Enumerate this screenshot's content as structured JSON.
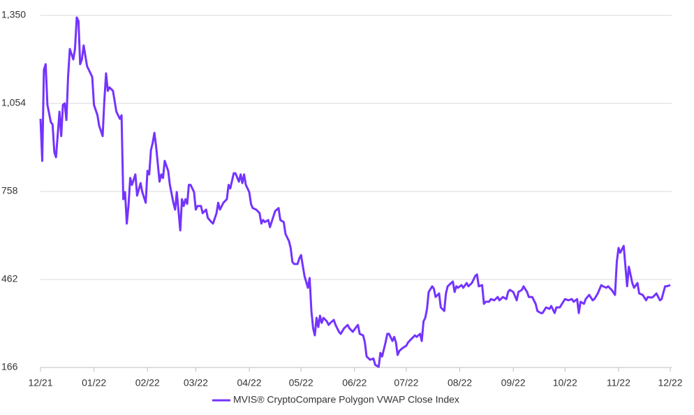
{
  "chart_data": {
    "type": "line",
    "x": [
      0,
      1,
      2,
      3,
      4,
      6,
      7,
      8,
      9,
      11,
      12,
      13,
      14,
      15,
      16,
      17,
      19,
      20,
      21,
      22,
      23,
      24,
      25,
      27,
      28,
      30,
      31,
      33,
      34,
      36,
      37,
      38,
      39,
      40,
      42,
      44,
      46,
      47,
      48,
      49,
      50,
      51,
      52,
      53,
      55,
      56,
      58,
      59,
      61,
      62,
      63,
      64,
      65,
      66,
      67,
      69,
      70,
      71,
      72,
      74,
      75,
      77,
      78,
      79,
      81,
      82,
      83,
      84,
      85,
      86,
      87,
      89,
      90,
      91,
      93,
      94,
      96,
      97,
      99,
      100,
      102,
      103,
      104,
      106,
      108,
      109,
      110,
      112,
      113,
      115,
      116,
      117,
      118,
      119,
      121,
      122,
      123,
      125,
      127,
      128,
      129,
      130,
      132,
      133,
      135,
      136,
      138,
      139,
      141,
      142,
      144,
      145,
      146,
      147,
      149,
      150,
      151,
      152,
      153,
      155,
      156,
      157,
      158,
      159,
      160,
      161,
      162,
      163,
      164,
      166,
      167,
      168,
      170,
      171,
      173,
      174,
      176,
      178,
      179,
      181,
      183,
      184,
      185,
      187,
      188,
      189,
      191,
      193,
      194,
      196,
      197,
      198,
      200,
      201,
      202,
      204,
      205,
      206,
      207,
      208,
      210,
      212,
      213,
      215,
      217,
      218,
      220,
      221,
      222,
      223,
      224,
      225,
      227,
      228,
      229,
      231,
      232,
      234,
      235,
      236,
      238,
      239,
      240,
      241,
      242,
      244,
      245,
      247,
      248,
      250,
      252,
      253,
      254,
      256,
      257,
      258,
      260,
      261,
      263,
      265,
      266,
      268,
      270,
      271,
      272,
      274,
      276,
      277,
      279,
      280,
      282,
      283,
      285,
      287,
      288,
      290,
      291,
      293,
      295,
      296,
      298,
      299,
      301,
      303,
      304,
      306,
      308,
      309,
      311,
      312,
      313,
      315,
      316,
      318,
      320,
      321,
      323,
      325,
      326,
      328,
      329,
      331,
      333,
      334,
      335,
      336,
      338,
      339,
      340,
      341,
      343,
      344,
      346,
      347,
      349,
      351,
      352,
      354,
      355,
      357,
      359,
      360,
      362,
      363,
      365
    ],
    "series": [
      {
        "name": "MVIS® CryptoCompare Polygon VWAP Close Index",
        "color": "#7433ff",
        "values": [
          1002,
          861,
          1167,
          1186,
          1049,
          991,
          983,
          890,
          873,
          1026,
          944,
          1049,
          1054,
          998,
          1143,
          1237,
          1202,
          1237,
          1343,
          1331,
          1186,
          1202,
          1249,
          1179,
          1167,
          1143,
          1049,
          1014,
          979,
          944,
          1061,
          1155,
          1096,
          1108,
          1096,
          1026,
          1002,
          1014,
          732,
          756,
          650,
          709,
          803,
          780,
          815,
          744,
          786,
          756,
          720,
          827,
          815,
          897,
          920,
          955,
          909,
          791,
          815,
          803,
          861,
          827,
          780,
          720,
          697,
          756,
          627,
          732,
          709,
          732,
          716,
          780,
          780,
          756,
          697,
          709,
          709,
          685,
          697,
          669,
          655,
          650,
          685,
          720,
          697,
          720,
          732,
          780,
          768,
          819,
          819,
          791,
          815,
          786,
          815,
          780,
          756,
          716,
          702,
          697,
          685,
          650,
          662,
          655,
          662,
          638,
          674,
          692,
          702,
          662,
          655,
          615,
          591,
          568,
          521,
          514,
          514,
          533,
          544,
          509,
          474,
          434,
          467,
          356,
          298,
          274,
          333,
          302,
          340,
          316,
          333,
          321,
          309,
          316,
          326,
          309,
          286,
          279,
          298,
          309,
          298,
          286,
          302,
          309,
          279,
          274,
          250,
          203,
          192,
          196,
          175,
          168,
          215,
          203,
          250,
          279,
          279,
          255,
          269,
          250,
          208,
          222,
          232,
          239,
          250,
          262,
          274,
          269,
          279,
          255,
          321,
          333,
          363,
          420,
          439,
          431,
          403,
          415,
          368,
          356,
          415,
          439,
          450,
          455,
          420,
          439,
          434,
          443,
          434,
          450,
          439,
          450,
          474,
          479,
          439,
          443,
          380,
          387,
          387,
          396,
          392,
          403,
          392,
          403,
          396,
          420,
          427,
          420,
          392,
          420,
          427,
          439,
          420,
          403,
          403,
          380,
          356,
          349,
          349,
          368,
          363,
          373,
          349,
          368,
          368,
          387,
          396,
          392,
          396,
          387,
          396,
          349,
          387,
          380,
          396,
          410,
          392,
          396,
          415,
          443,
          439,
          434,
          439,
          427,
          410,
          521,
          568,
          552,
          575,
          509,
          439,
          505,
          450,
          434,
          450,
          415,
          410,
          392,
          403,
          401,
          403,
          415,
          392,
          396,
          439,
          439,
          443
        ]
      }
    ],
    "xlim": [
      0,
      365
    ],
    "xticks": [
      {
        "value": 0,
        "label": "12/21"
      },
      {
        "value": 31,
        "label": "01/22"
      },
      {
        "value": 62,
        "label": "02/22"
      },
      {
        "value": 90,
        "label": "03/22"
      },
      {
        "value": 121,
        "label": "04/22"
      },
      {
        "value": 151,
        "label": "05/22"
      },
      {
        "value": 182,
        "label": "06/22"
      },
      {
        "value": 212,
        "label": "07/22"
      },
      {
        "value": 243,
        "label": "08/22"
      },
      {
        "value": 274,
        "label": "09/22"
      },
      {
        "value": 304,
        "label": "10/22"
      },
      {
        "value": 335,
        "label": "11/22"
      },
      {
        "value": 365,
        "label": "12/22"
      }
    ],
    "ylim": [
      166,
      1350
    ],
    "yticks": [
      166,
      462,
      758,
      {
        "value": 1054,
        "label": "1,054"
      },
      {
        "value": 1350,
        "label": "1,350"
      }
    ],
    "grid": true,
    "legend": "bottom"
  }
}
